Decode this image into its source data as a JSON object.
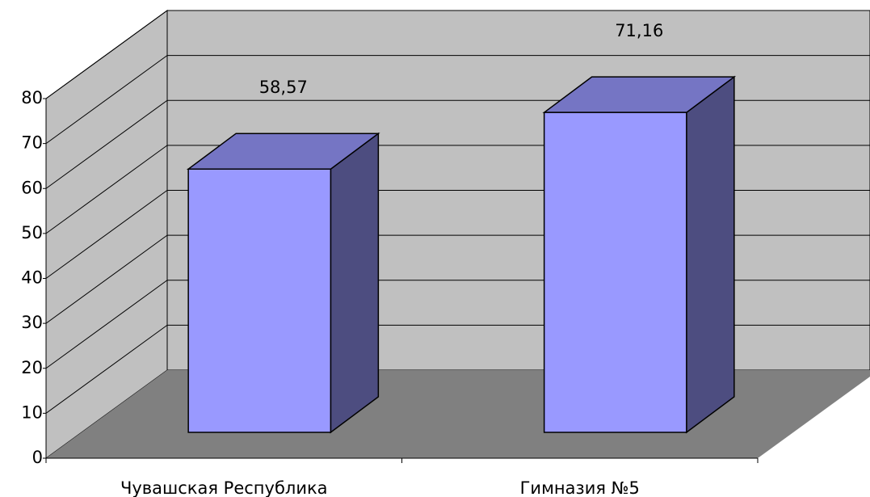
{
  "chart_data": {
    "type": "bar",
    "categories": [
      "Чувашская Республика",
      "Гимназия №5"
    ],
    "values": [
      58.57,
      71.16
    ],
    "value_labels": [
      "58,57",
      "71,16"
    ],
    "ylim": [
      0,
      80
    ],
    "yticks": [
      0,
      10,
      20,
      30,
      40,
      50,
      60,
      70,
      80
    ],
    "grid": true,
    "color": "#9999ff",
    "side_color": "#4d4d80",
    "top_color": "#7575c4",
    "wall_color": "#c0c0c0",
    "floor_color": "#808080"
  }
}
